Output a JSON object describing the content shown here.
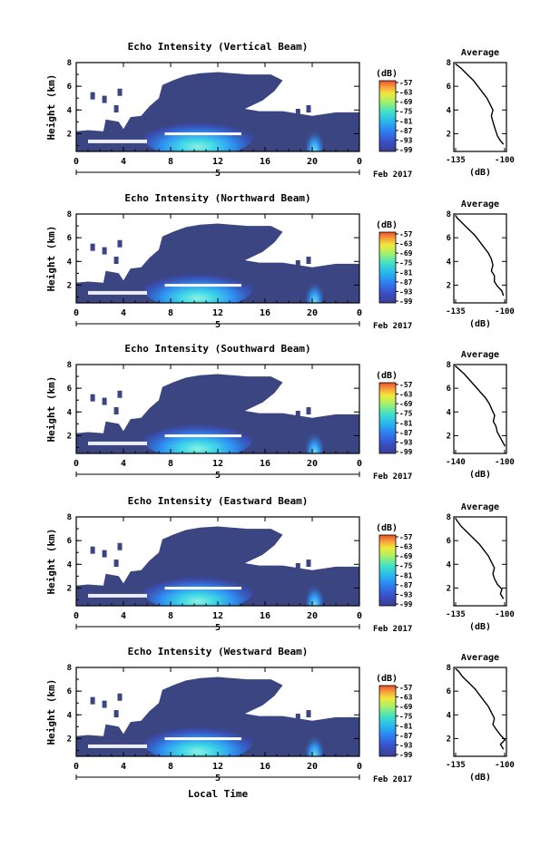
{
  "figure": {
    "footer": "Local Time",
    "date_label": "Feb 2017",
    "colorbar_title": "(dB)",
    "avg_title": "Average",
    "avg_xlabel": "(dB)",
    "ylabel": "Height (km)",
    "colors": {
      "background_echo": "#3b4582",
      "colormap": [
        "#3b3f8f",
        "#3a4fc7",
        "#2f7cf0",
        "#27b5ee",
        "#3fe0c8",
        "#a5f06a",
        "#f0e93c",
        "#f7a13a",
        "#ee4f2c"
      ]
    }
  },
  "chart_data": [
    {
      "type": "heatmap",
      "title": "Echo Intensity (Vertical Beam)",
      "x_ticks": [
        "0",
        "4",
        "8",
        "12",
        "16",
        "20",
        "0"
      ],
      "x_day_label": "5",
      "y_ticks": [
        "2",
        "4",
        "6",
        "8"
      ],
      "xlim": [
        0,
        24
      ],
      "ylim": [
        0.5,
        8
      ],
      "colorbar_ticks": [
        "-57",
        "-63",
        "-69",
        "-75",
        "-81",
        "-87",
        "-93",
        "-99"
      ],
      "profile": {
        "title": "Average",
        "x_ticks": [
          "-135",
          "-100"
        ],
        "y_ticks": [
          "2",
          "4",
          "6",
          "8"
        ],
        "xlim": [
          -135,
          -100
        ],
        "points": [
          [
            -102,
            1.1
          ],
          [
            -104,
            1.4
          ],
          [
            -106,
            1.8
          ],
          [
            -107,
            2.2
          ],
          [
            -108,
            2.6
          ],
          [
            -109,
            3.0
          ],
          [
            -110,
            3.5
          ],
          [
            -109,
            4.0
          ],
          [
            -111,
            4.5
          ],
          [
            -113,
            5.0
          ],
          [
            -116,
            5.5
          ],
          [
            -119,
            6.0
          ],
          [
            -122,
            6.5
          ],
          [
            -126,
            7.0
          ],
          [
            -130,
            7.5
          ],
          [
            -134,
            7.9
          ]
        ]
      }
    },
    {
      "type": "heatmap",
      "title": "Echo Intensity (Northward Beam)",
      "x_ticks": [
        "0",
        "4",
        "8",
        "12",
        "16",
        "20",
        "0"
      ],
      "x_day_label": "5",
      "y_ticks": [
        "2",
        "4",
        "6",
        "8"
      ],
      "xlim": [
        0,
        24
      ],
      "ylim": [
        0.5,
        8
      ],
      "colorbar_ticks": [
        "-57",
        "-63",
        "-69",
        "-75",
        "-81",
        "-87",
        "-93",
        "-99"
      ],
      "profile": {
        "title": "Average",
        "x_ticks": [
          "-135",
          "-100"
        ],
        "y_ticks": [
          "2",
          "4",
          "6",
          "8"
        ],
        "xlim": [
          -135,
          -100
        ],
        "points": [
          [
            -102,
            1.1
          ],
          [
            -103,
            1.5
          ],
          [
            -106,
            1.9
          ],
          [
            -108,
            2.3
          ],
          [
            -108,
            2.8
          ],
          [
            -110,
            3.2
          ],
          [
            -109,
            3.7
          ],
          [
            -110,
            4.2
          ],
          [
            -112,
            4.7
          ],
          [
            -115,
            5.2
          ],
          [
            -118,
            5.7
          ],
          [
            -121,
            6.2
          ],
          [
            -125,
            6.7
          ],
          [
            -129,
            7.2
          ],
          [
            -133,
            7.7
          ],
          [
            -134,
            7.9
          ]
        ]
      }
    },
    {
      "type": "heatmap",
      "title": "Echo Intensity (Southward Beam)",
      "x_ticks": [
        "0",
        "4",
        "8",
        "12",
        "16",
        "20",
        "0"
      ],
      "x_day_label": "5",
      "y_ticks": [
        "2",
        "4",
        "6",
        "8"
      ],
      "xlim": [
        0,
        24
      ],
      "ylim": [
        0.5,
        8
      ],
      "colorbar_ticks": [
        "-57",
        "-63",
        "-69",
        "-75",
        "-81",
        "-87",
        "-93",
        "-99"
      ],
      "profile": {
        "title": "Average",
        "x_ticks": [
          "-140",
          "-100"
        ],
        "y_ticks": [
          "2",
          "4",
          "6",
          "8"
        ],
        "xlim": [
          -140,
          -100
        ],
        "points": [
          [
            -101,
            1.1
          ],
          [
            -103,
            1.5
          ],
          [
            -105,
            1.9
          ],
          [
            -107,
            2.3
          ],
          [
            -108,
            2.8
          ],
          [
            -110,
            3.2
          ],
          [
            -109,
            3.7
          ],
          [
            -111,
            4.2
          ],
          [
            -113,
            4.7
          ],
          [
            -116,
            5.2
          ],
          [
            -120,
            5.7
          ],
          [
            -124,
            6.2
          ],
          [
            -128,
            6.7
          ],
          [
            -132,
            7.2
          ],
          [
            -136,
            7.6
          ],
          [
            -139,
            7.9
          ]
        ]
      }
    },
    {
      "type": "heatmap",
      "title": "Echo Intensity (Eastward Beam)",
      "x_ticks": [
        "0",
        "4",
        "8",
        "12",
        "16",
        "20",
        "0"
      ],
      "x_day_label": "5",
      "y_ticks": [
        "2",
        "4",
        "6",
        "8"
      ],
      "xlim": [
        0,
        24
      ],
      "ylim": [
        0.5,
        8
      ],
      "colorbar_ticks": [
        "-57",
        "-63",
        "-69",
        "-75",
        "-81",
        "-87",
        "-93",
        "-99"
      ],
      "profile": {
        "title": "Average",
        "x_ticks": [
          "-135",
          "-100"
        ],
        "y_ticks": [
          "2",
          "4",
          "6",
          "8"
        ],
        "xlim": [
          -135,
          -100
        ],
        "points": [
          [
            -102,
            1.1
          ],
          [
            -104,
            1.5
          ],
          [
            -103,
            1.9
          ],
          [
            -106,
            2.3
          ],
          [
            -108,
            2.8
          ],
          [
            -109,
            3.2
          ],
          [
            -108,
            3.7
          ],
          [
            -110,
            4.2
          ],
          [
            -112,
            4.7
          ],
          [
            -115,
            5.2
          ],
          [
            -118,
            5.7
          ],
          [
            -122,
            6.2
          ],
          [
            -126,
            6.7
          ],
          [
            -130,
            7.2
          ],
          [
            -133,
            7.7
          ],
          [
            -134,
            7.9
          ]
        ]
      }
    },
    {
      "type": "heatmap",
      "title": "Echo Intensity (Westward Beam)",
      "x_ticks": [
        "0",
        "4",
        "8",
        "12",
        "16",
        "20",
        "0"
      ],
      "x_day_label": "5",
      "y_ticks": [
        "2",
        "4",
        "6",
        "8"
      ],
      "xlim": [
        0,
        24
      ],
      "ylim": [
        0.5,
        8
      ],
      "colorbar_ticks": [
        "-57",
        "-63",
        "-69",
        "-75",
        "-81",
        "-87",
        "-93",
        "-99"
      ],
      "profile": {
        "title": "Average",
        "x_ticks": [
          "-135",
          "-100"
        ],
        "y_ticks": [
          "2",
          "4",
          "6",
          "8"
        ],
        "xlim": [
          -135,
          -100
        ],
        "points": [
          [
            -102,
            1.1
          ],
          [
            -104,
            1.5
          ],
          [
            -101,
            1.9
          ],
          [
            -104,
            2.3
          ],
          [
            -107,
            2.8
          ],
          [
            -109,
            3.2
          ],
          [
            -108,
            3.7
          ],
          [
            -110,
            4.2
          ],
          [
            -112,
            4.7
          ],
          [
            -115,
            5.2
          ],
          [
            -118,
            5.7
          ],
          [
            -121,
            6.2
          ],
          [
            -125,
            6.7
          ],
          [
            -129,
            7.2
          ],
          [
            -132,
            7.7
          ],
          [
            -134,
            7.9
          ]
        ]
      }
    }
  ]
}
